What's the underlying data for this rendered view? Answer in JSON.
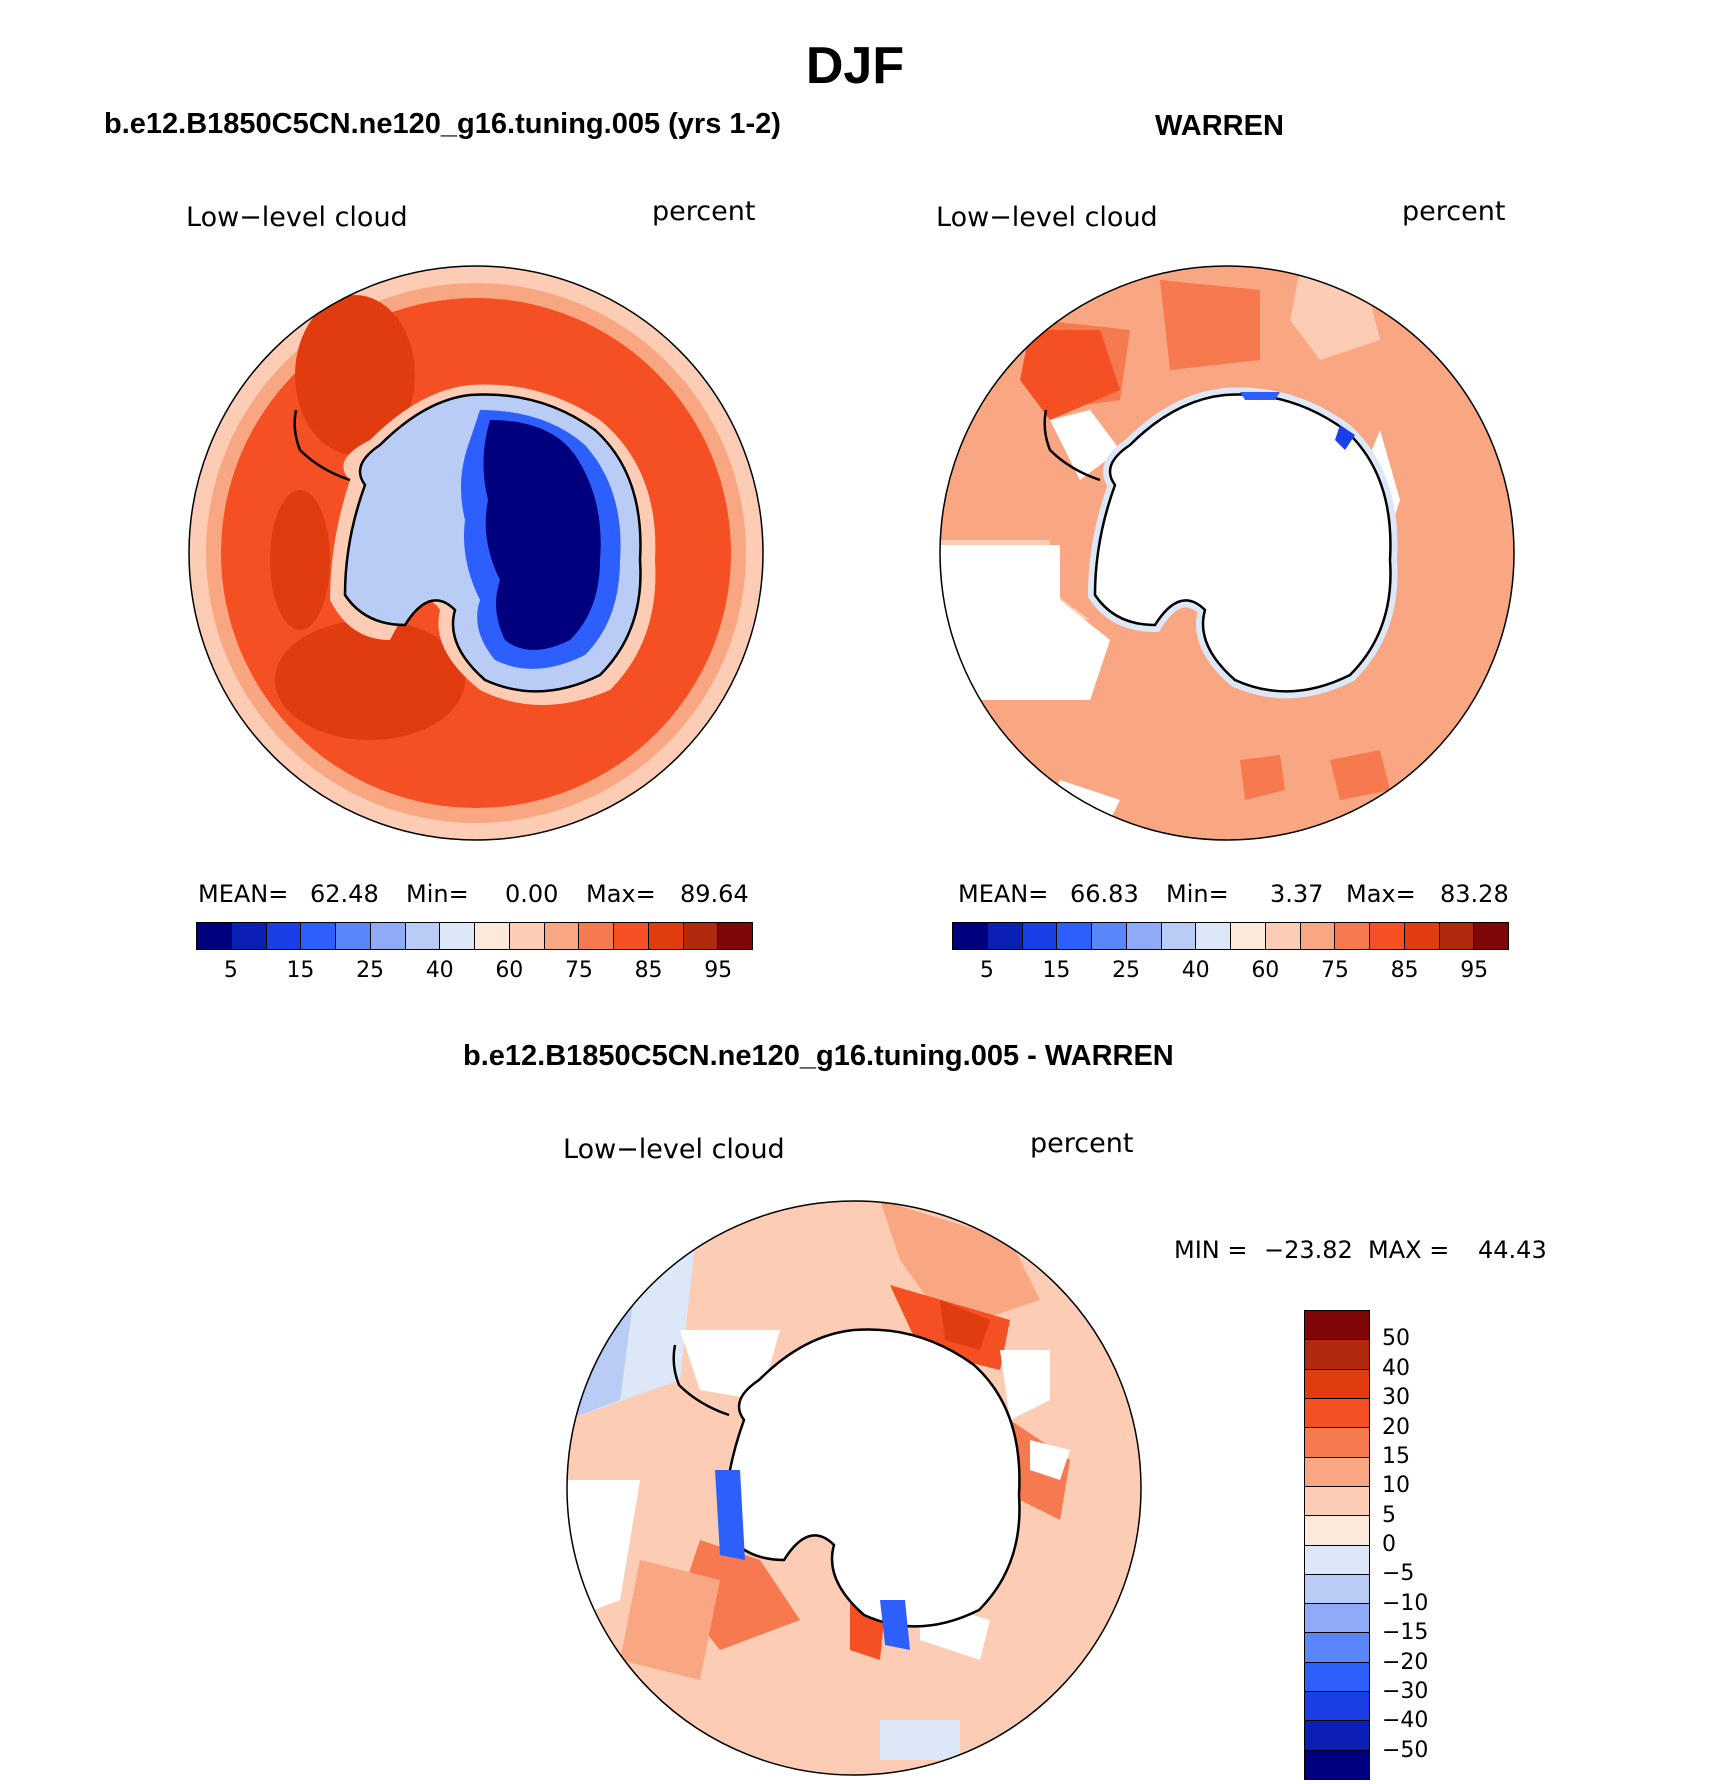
{
  "title": "DJF",
  "panels": [
    {
      "name": "model",
      "title": "b.e12.B1850C5CN.ne120_g16.tuning.005 (yrs 1-2)",
      "left_label": "Low−level cloud",
      "right_label": "percent",
      "stats": {
        "mean_label": "MEAN=",
        "mean": "62.48",
        "min_label": "Min=",
        "min": "0.00",
        "max_label": "Max=",
        "max": "89.64"
      },
      "colorbar_ticks": [
        "5",
        "15",
        "25",
        "40",
        "60",
        "75",
        "85",
        "95"
      ]
    },
    {
      "name": "obs",
      "title": "WARREN",
      "left_label": "Low−level cloud",
      "right_label": "percent",
      "stats": {
        "mean_label": "MEAN=",
        "mean": "66.83",
        "min_label": "Min=",
        "min": "3.37",
        "max_label": "Max=",
        "max": "83.28"
      },
      "colorbar_ticks": [
        "5",
        "15",
        "25",
        "40",
        "60",
        "75",
        "85",
        "95"
      ]
    },
    {
      "name": "diff",
      "title": "b.e12.B1850C5CN.ne120_g16.tuning.005 - WARREN",
      "left_label": "Low−level cloud",
      "right_label": "percent",
      "stats": {
        "min_label": "MIN =",
        "min": "−23.82",
        "max_label": "MAX =",
        "max": "44.43"
      },
      "colorbar_ticks": [
        "50",
        "40",
        "30",
        "20",
        "15",
        "10",
        "5",
        "0",
        "−5",
        "−10",
        "−15",
        "−20",
        "−30",
        "−40",
        "−50"
      ]
    }
  ],
  "colors": {
    "abs_scale": [
      "#00007f",
      "#0a1fb3",
      "#1a3fe6",
      "#2c5ffb",
      "#5a86fb",
      "#8fabf7",
      "#b9ccf6",
      "#dce8f8",
      "#fde8dc",
      "#fccdb4",
      "#f9a783",
      "#f7794f",
      "#f54f24",
      "#e13b10",
      "#b22a0e",
      "#7f0707"
    ],
    "diff_scale": [
      "#7f0707",
      "#b22a0e",
      "#e13b10",
      "#f54f24",
      "#f7794f",
      "#f9a783",
      "#fccdb4",
      "#fde8dc",
      "#dce8f8",
      "#b9ccf6",
      "#8fabf7",
      "#5a86fb",
      "#2c5ffb",
      "#1a3fe6",
      "#0a1fb3",
      "#00007f"
    ],
    "coastline": "#000000"
  }
}
